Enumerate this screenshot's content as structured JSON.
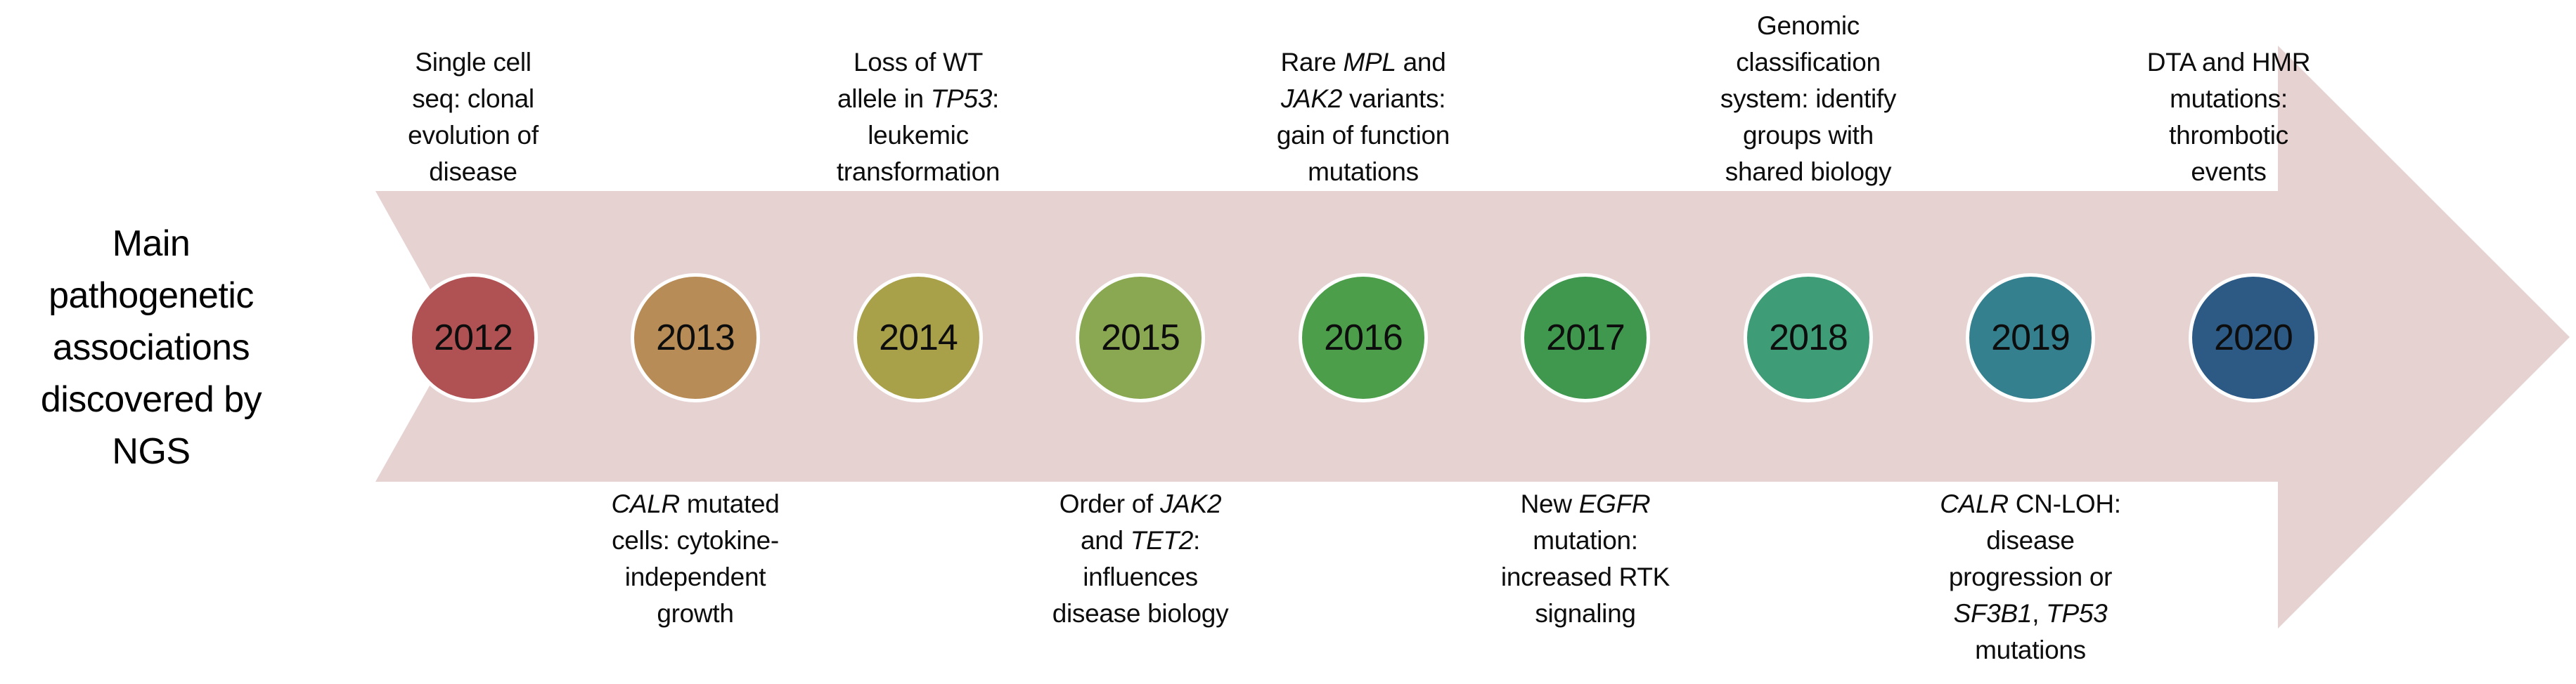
{
  "title": {
    "lines": [
      "Main",
      "pathogenetic",
      "associations",
      "discovered by",
      "NGS"
    ]
  },
  "timeline": {
    "arrow_color": "#e7d2d2",
    "years": [
      {
        "label": "2012",
        "color": "#b05253"
      },
      {
        "label": "2013",
        "color": "#b78c57"
      },
      {
        "label": "2014",
        "color": "#a9a149"
      },
      {
        "label": "2015",
        "color": "#8aa751"
      },
      {
        "label": "2016",
        "color": "#4c9e4b"
      },
      {
        "label": "2017",
        "color": "#40984f"
      },
      {
        "label": "2018",
        "color": "#3e9c77"
      },
      {
        "label": "2019",
        "color": "#35808e"
      },
      {
        "label": "2020",
        "color": "#2d5a85"
      }
    ]
  },
  "annotations": {
    "top": [
      {
        "year": "2012",
        "lines": [
          [
            {
              "t": "Single cell"
            }
          ],
          [
            {
              "t": "seq: clonal"
            }
          ],
          [
            {
              "t": "evolution of"
            }
          ],
          [
            {
              "t": "disease"
            }
          ]
        ]
      },
      {
        "year": "2014",
        "lines": [
          [
            {
              "t": "Loss of WT"
            }
          ],
          [
            {
              "t": "allele in "
            },
            {
              "t": "TP53",
              "i": true
            },
            {
              "t": ":"
            }
          ],
          [
            {
              "t": "leukemic"
            }
          ],
          [
            {
              "t": "transformation"
            }
          ]
        ]
      },
      {
        "year": "2016",
        "lines": [
          [
            {
              "t": "Rare "
            },
            {
              "t": "MPL",
              "i": true
            },
            {
              "t": " and"
            }
          ],
          [
            {
              "t": "JAK2",
              "i": true
            },
            {
              "t": " variants:"
            }
          ],
          [
            {
              "t": "gain of function"
            }
          ],
          [
            {
              "t": "mutations"
            }
          ]
        ]
      },
      {
        "year": "2018",
        "lines": [
          [
            {
              "t": "Genomic"
            }
          ],
          [
            {
              "t": "classification"
            }
          ],
          [
            {
              "t": "system: identify"
            }
          ],
          [
            {
              "t": "groups with"
            }
          ],
          [
            {
              "t": "shared biology"
            }
          ]
        ]
      },
      {
        "year": "2020",
        "lines": [
          [
            {
              "t": "DTA and HMR"
            }
          ],
          [
            {
              "t": "mutations:"
            }
          ],
          [
            {
              "t": "thrombotic"
            }
          ],
          [
            {
              "t": "events"
            }
          ]
        ]
      }
    ],
    "bottom": [
      {
        "year": "2013",
        "lines": [
          [
            {
              "t": "CALR",
              "i": true
            },
            {
              "t": " mutated"
            }
          ],
          [
            {
              "t": "cells: cytokine-"
            }
          ],
          [
            {
              "t": "independent"
            }
          ],
          [
            {
              "t": "growth"
            }
          ]
        ]
      },
      {
        "year": "2015",
        "lines": [
          [
            {
              "t": "Order of "
            },
            {
              "t": "JAK2",
              "i": true
            }
          ],
          [
            {
              "t": "and "
            },
            {
              "t": "TET2",
              "i": true
            },
            {
              "t": ":"
            }
          ],
          [
            {
              "t": "influences"
            }
          ],
          [
            {
              "t": "disease biology"
            }
          ]
        ]
      },
      {
        "year": "2017",
        "lines": [
          [
            {
              "t": "New "
            },
            {
              "t": "EGFR",
              "i": true
            }
          ],
          [
            {
              "t": "mutation:"
            }
          ],
          [
            {
              "t": "increased RTK"
            }
          ],
          [
            {
              "t": "signaling"
            }
          ]
        ]
      },
      {
        "year": "2019",
        "lines": [
          [
            {
              "t": "CALR",
              "i": true
            },
            {
              "t": " CN-LOH:"
            }
          ],
          [
            {
              "t": "disease"
            }
          ],
          [
            {
              "t": "progression or"
            }
          ],
          [
            {
              "t": "SF3B1",
              "i": true
            },
            {
              "t": ", "
            },
            {
              "t": "TP53",
              "i": true
            }
          ],
          [
            {
              "t": "mutations"
            }
          ]
        ]
      }
    ]
  }
}
